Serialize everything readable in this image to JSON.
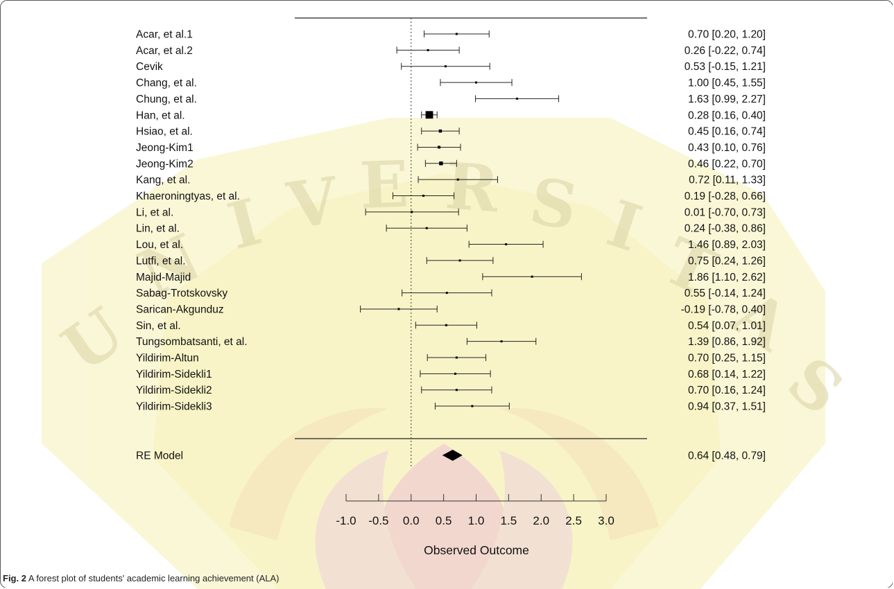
{
  "figure": {
    "caption_prefix": "Fig. 2",
    "caption_text": "A forest plot of students' academic learning achievement (ALA)"
  },
  "chart_data": {
    "type": "forest",
    "xlabel": "Observed Outcome",
    "xlim": [
      -1.0,
      3.0
    ],
    "reference_line": 0.0,
    "xticks": [
      "-1.0",
      "-0.5",
      "0.0",
      "0.5",
      "1.0",
      "1.5",
      "2.0",
      "2.5",
      "3.0"
    ],
    "tick_values": [
      -1.0,
      -0.5,
      0.0,
      0.5,
      1.0,
      1.5,
      2.0,
      2.5,
      3.0
    ],
    "studies": [
      {
        "name": "Acar, et al.1",
        "est": 0.7,
        "lo": 0.2,
        "hi": 1.2,
        "ci_text": "0.70 [0.20, 1.20]"
      },
      {
        "name": "Acar, et al.2",
        "est": 0.26,
        "lo": -0.22,
        "hi": 0.74,
        "ci_text": "0.26 [-0.22, 0.74]"
      },
      {
        "name": "Cevik",
        "est": 0.53,
        "lo": -0.15,
        "hi": 1.21,
        "ci_text": "0.53 [-0.15, 1.21]"
      },
      {
        "name": "Chang, et al.",
        "est": 1.0,
        "lo": 0.45,
        "hi": 1.55,
        "ci_text": "1.00 [0.45, 1.55]"
      },
      {
        "name": "Chung, et al.",
        "est": 1.63,
        "lo": 0.99,
        "hi": 2.27,
        "ci_text": "1.63 [0.99, 2.27]"
      },
      {
        "name": "Han, et al.",
        "est": 0.28,
        "lo": 0.16,
        "hi": 0.4,
        "ci_text": "0.28 [0.16, 0.40]"
      },
      {
        "name": "Hsiao, et al.",
        "est": 0.45,
        "lo": 0.16,
        "hi": 0.74,
        "ci_text": "0.45 [0.16, 0.74]"
      },
      {
        "name": "Jeong-Kim1",
        "est": 0.43,
        "lo": 0.1,
        "hi": 0.76,
        "ci_text": "0.43 [0.10, 0.76]"
      },
      {
        "name": "Jeong-Kim2",
        "est": 0.46,
        "lo": 0.22,
        "hi": 0.7,
        "ci_text": "0.46 [0.22, 0.70]"
      },
      {
        "name": "Kang, et al.",
        "est": 0.72,
        "lo": 0.11,
        "hi": 1.33,
        "ci_text": "0.72 [0.11, 1.33]"
      },
      {
        "name": "Khaeroningtyas, et al.",
        "est": 0.19,
        "lo": -0.28,
        "hi": 0.66,
        "ci_text": "0.19 [-0.28, 0.66]"
      },
      {
        "name": "Li, et al.",
        "est": 0.01,
        "lo": -0.7,
        "hi": 0.73,
        "ci_text": "0.01 [-0.70, 0.73]"
      },
      {
        "name": "Lin, et al.",
        "est": 0.24,
        "lo": -0.38,
        "hi": 0.86,
        "ci_text": "0.24 [-0.38, 0.86]"
      },
      {
        "name": "Lou, et al.",
        "est": 1.46,
        "lo": 0.89,
        "hi": 2.03,
        "ci_text": "1.46 [0.89, 2.03]"
      },
      {
        "name": "Lutfi, et al.",
        "est": 0.75,
        "lo": 0.24,
        "hi": 1.26,
        "ci_text": "0.75 [0.24, 1.26]"
      },
      {
        "name": "Majid-Majid",
        "est": 1.86,
        "lo": 1.1,
        "hi": 2.62,
        "ci_text": "1.86 [1.10, 2.62]"
      },
      {
        "name": "Sabag-Trotskovsky",
        "est": 0.55,
        "lo": -0.14,
        "hi": 1.24,
        "ci_text": "0.55 [-0.14, 1.24]"
      },
      {
        "name": "Sarican-Akgunduz",
        "est": -0.19,
        "lo": -0.78,
        "hi": 0.4,
        "ci_text": "-0.19 [-0.78, 0.40]"
      },
      {
        "name": "Sin, et al.",
        "est": 0.54,
        "lo": 0.07,
        "hi": 1.01,
        "ci_text": "0.54 [0.07, 1.01]"
      },
      {
        "name": "Tungsombatsanti, et al.",
        "est": 1.39,
        "lo": 0.86,
        "hi": 1.92,
        "ci_text": "1.39 [0.86, 1.92]"
      },
      {
        "name": "Yildirim-Altun",
        "est": 0.7,
        "lo": 0.25,
        "hi": 1.15,
        "ci_text": "0.70 [0.25, 1.15]"
      },
      {
        "name": "Yildirim-Sidekli1",
        "est": 0.68,
        "lo": 0.14,
        "hi": 1.22,
        "ci_text": "0.68 [0.14, 1.22]"
      },
      {
        "name": "Yildirim-Sidekli2",
        "est": 0.7,
        "lo": 0.16,
        "hi": 1.24,
        "ci_text": "0.70 [0.16, 1.24]"
      },
      {
        "name": "Yildirim-Sidekli3",
        "est": 0.94,
        "lo": 0.37,
        "hi": 1.51,
        "ci_text": "0.94 [0.37, 1.51]"
      }
    ],
    "summary": {
      "name": "RE Model",
      "est": 0.64,
      "lo": 0.48,
      "hi": 0.79,
      "ci_text": "0.64 [0.48, 0.79]"
    }
  }
}
